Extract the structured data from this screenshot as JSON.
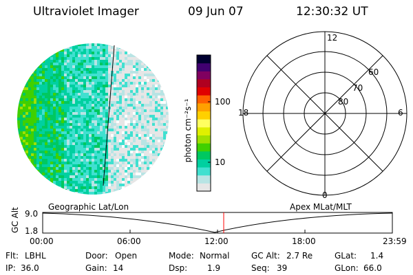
{
  "header": {
    "instrument": "Ultraviolet Imager",
    "date": "09 Jun 07",
    "time": "12:30:32 UT"
  },
  "colorbar": {
    "unit_label": "photon cm⁻²s⁻¹",
    "tick_100": "100",
    "tick_10": "10",
    "colors": [
      "#e6e6e6",
      "#b8e4e4",
      "#40e0d0",
      "#00d0a0",
      "#00c860",
      "#40d000",
      "#a0e000",
      "#e0f000",
      "#ffff60",
      "#ffd000",
      "#ffa000",
      "#ff6000",
      "#e00000",
      "#b00020",
      "#800060",
      "#400070",
      "#000030"
    ]
  },
  "polar": {
    "lat_labels": [
      "60",
      "70",
      "80"
    ],
    "mlt_labels": {
      "top": "12",
      "left": "18",
      "right": "6",
      "bottom": "0"
    }
  },
  "strip": {
    "left_title": "Geographic Lat/Lon",
    "right_title": "Apex MLat/MLT",
    "yaxis_label": "GC Alt",
    "y_top": "9.0",
    "y_bottom": "1.8",
    "x_ticks": [
      "00:00",
      "06:00",
      "12:00",
      "18:00",
      "23:59"
    ],
    "marker_color": "#ff0000"
  },
  "info": {
    "flt_label": "Flt:",
    "flt_value": "LBHL",
    "ip_label": "IP:",
    "ip_value": "36.0",
    "door_label": "Door:",
    "door_value": "Open",
    "gain_label": "Gain:",
    "gain_value": "14",
    "mode_label": "Mode:",
    "mode_value": "Normal",
    "dsp_label": "Dsp:",
    "dsp_value": "1.9",
    "gcalt_label": "GC Alt:",
    "gcalt_value": "2.7 Re",
    "seq_label": "Seq:",
    "seq_value": "39",
    "glat_label": "GLat:",
    "glat_value": "1.4",
    "glon_label": "GLon:",
    "glon_value": "66.0"
  }
}
